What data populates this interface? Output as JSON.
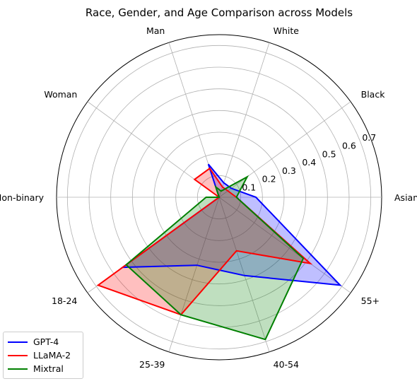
{
  "chart_data": {
    "type": "radar",
    "title": "Race, Gender, and Age Comparison across Models",
    "categories": [
      "Asian",
      "White",
      "Black",
      "Man",
      "Woman",
      "Non-binary",
      "18-24",
      "25-39",
      "40-54",
      "55+"
    ],
    "axis_order_clockwise_from_right": [
      "Asian",
      "Black",
      "White",
      "Man",
      "Woman",
      "Non-binary",
      "18-24",
      "25-39",
      "40-54",
      "55+"
    ],
    "radial_ticks": [
      "0.1",
      "0.2",
      "0.3",
      "0.4",
      "0.5",
      "0.6",
      "0.7"
    ],
    "rlim": [
      0,
      0.75
    ],
    "grid": true,
    "legend_position": "lower-left",
    "series": [
      {
        "name": "GPT-4",
        "color": "#0000ff",
        "values": {
          "Asian": 0.17,
          "Black": 0.07,
          "White": 0.07,
          "Man": 0.16,
          "Woman": 0.0,
          "Non-binary": 0.0,
          "18-24": 0.55,
          "25-39": 0.33,
          "40-54": 0.38,
          "55+": 0.69
        }
      },
      {
        "name": "LLaMA-2",
        "color": "#ff0000",
        "values": {
          "Asian": 0.08,
          "Black": 0.05,
          "White": 0.05,
          "Man": 0.14,
          "Woman": 0.14,
          "Non-binary": 0.0,
          "18-24": 0.69,
          "25-39": 0.57,
          "40-54": 0.26,
          "55+": 0.52
        }
      },
      {
        "name": "Mixtral",
        "color": "#008000",
        "values": {
          "Asian": 0.08,
          "Black": 0.16,
          "White": 0.03,
          "Man": 0.05,
          "Woman": 0.0,
          "Non-binary": 0.06,
          "18-24": 0.53,
          "25-39": 0.57,
          "40-54": 0.69,
          "55+": 0.48
        }
      }
    ]
  }
}
